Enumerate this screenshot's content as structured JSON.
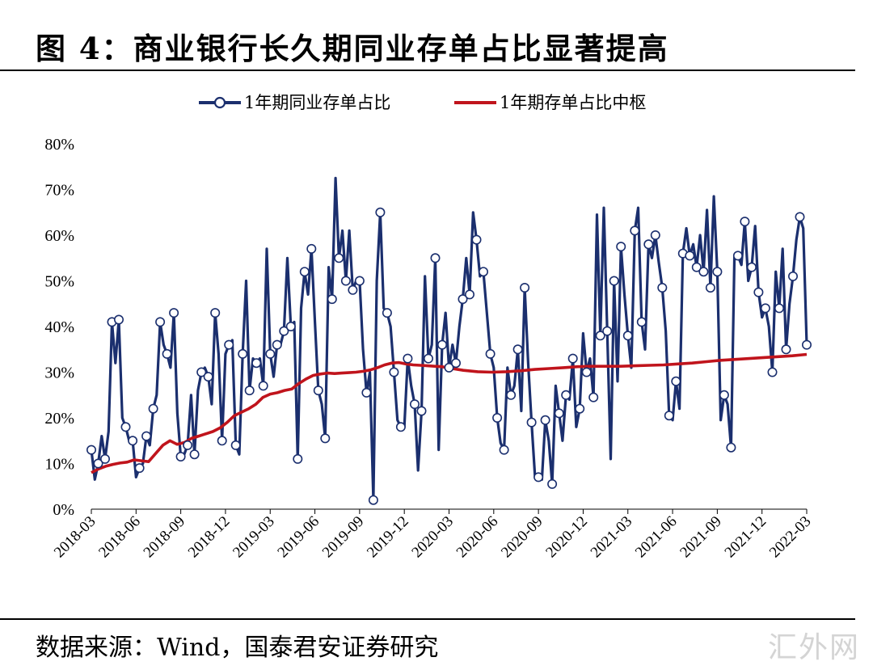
{
  "header": {
    "title": "图 4：商业银行长久期同业存单占比显著提高"
  },
  "footer": {
    "source": "数据来源：Wind，国泰君安证券研究",
    "watermark": "汇外网"
  },
  "colors": {
    "series1": "#1b2f6e",
    "series2": "#c0141c",
    "marker_fill": "#ffffff"
  },
  "chart_data": {
    "type": "line",
    "title": "图 4：商业银行长久期同业存单占比显著提高",
    "xlabel": "",
    "ylabel": "",
    "ylim": [
      0,
      80
    ],
    "yticks": [
      0,
      10,
      20,
      30,
      40,
      50,
      60,
      70,
      80
    ],
    "ytick_labels": [
      "0%",
      "10%",
      "20%",
      "30%",
      "40%",
      "50%",
      "60%",
      "70%",
      "80%"
    ],
    "xticks": [
      "2018-03",
      "2018-06",
      "2018-09",
      "2018-12",
      "2019-03",
      "2019-06",
      "2019-09",
      "2019-12",
      "2020-03",
      "2020-06",
      "2020-09",
      "2020-12",
      "2021-03",
      "2021-06",
      "2021-09",
      "2021-12",
      "2022-03"
    ],
    "x_start": "2018-03",
    "x_end": "2022-03",
    "grid": false,
    "legend_position": "top-center",
    "series": [
      {
        "name": "1年期同业存单占比",
        "marker": "circle",
        "values": [
          13,
          6.5,
          10,
          16,
          11,
          17,
          41,
          32,
          41.5,
          20,
          18,
          15,
          15,
          7,
          9,
          10,
          16,
          14,
          22,
          25,
          41,
          36,
          34,
          31,
          43,
          21,
          11.5,
          12,
          14,
          25,
          12,
          26,
          30,
          31,
          29,
          23,
          43,
          34,
          15,
          34,
          36,
          37,
          14,
          12,
          34,
          50,
          26,
          33,
          32,
          33,
          27,
          57,
          34,
          29,
          36,
          36,
          39,
          55,
          40,
          41,
          11,
          44,
          52,
          47,
          57,
          41,
          26,
          23,
          15.5,
          53,
          46,
          72.5,
          55,
          61,
          50,
          61,
          48,
          50,
          50,
          35,
          25.5,
          30,
          2,
          50,
          65,
          44,
          43,
          40,
          30,
          19.5,
          18,
          18,
          33,
          27,
          23,
          8.5,
          21.5,
          51,
          33,
          36,
          55,
          13,
          36,
          43,
          31,
          36,
          32,
          40,
          46,
          55,
          47,
          65,
          59,
          51,
          52,
          43,
          34,
          31,
          20,
          14.5,
          13,
          31,
          25,
          27,
          35,
          21.5,
          48.5,
          32,
          19,
          7,
          7,
          6.5,
          19.5,
          15,
          5.5,
          27,
          21,
          15,
          25,
          24,
          33,
          18,
          22,
          38.5,
          30,
          33,
          24.5,
          64.5,
          38,
          66,
          39,
          11,
          50,
          28,
          57.5,
          47,
          38,
          31,
          61,
          66,
          41,
          35,
          58,
          55,
          60,
          54,
          48.5,
          39,
          20.5,
          19.5,
          28,
          22,
          56,
          61.5,
          55.5,
          58,
          53,
          60,
          52,
          65.5,
          48.5,
          68.5,
          52,
          19.5,
          25,
          23,
          13.5,
          55.5,
          55.5,
          53.5,
          63,
          50,
          53,
          62,
          47.5,
          42,
          44,
          40,
          30,
          52,
          44,
          57,
          35,
          45,
          51,
          59,
          64,
          61.5,
          36
        ]
      },
      {
        "name": "1年期存单占比中枢",
        "marker": "none",
        "x_frac": [
          0,
          0.01,
          0.02,
          0.03,
          0.04,
          0.05,
          0.06,
          0.07,
          0.08,
          0.09,
          0.1,
          0.11,
          0.12,
          0.13,
          0.14,
          0.15,
          0.17,
          0.18,
          0.19,
          0.2,
          0.22,
          0.23,
          0.24,
          0.25,
          0.26,
          0.27,
          0.28,
          0.29,
          0.3,
          0.31,
          0.32,
          0.33,
          0.34,
          0.35,
          0.36,
          0.37,
          0.38,
          0.39,
          0.4,
          0.41,
          0.42,
          0.43,
          0.44,
          0.45,
          0.46,
          0.47,
          0.48,
          0.49,
          0.5,
          0.52,
          0.54,
          0.56,
          0.58,
          0.6,
          0.62,
          0.64,
          0.66,
          0.68,
          0.7,
          0.72,
          0.74,
          0.76,
          0.78,
          0.8,
          0.82,
          0.84,
          0.86,
          0.88,
          0.9,
          0.92,
          0.94,
          0.96,
          0.98,
          1.0
        ],
        "values": [
          8,
          8.8,
          9.4,
          9.8,
          10.1,
          10.3,
          10.8,
          10.6,
          10.4,
          12.2,
          14,
          15,
          14.2,
          14.6,
          15.5,
          16,
          17,
          17.8,
          19,
          20.5,
          22,
          23,
          24.5,
          25.2,
          25.5,
          26,
          26.3,
          27.5,
          28.5,
          29.3,
          29.6,
          29.8,
          29.7,
          29.8,
          29.9,
          30,
          30.2,
          30.5,
          31,
          31.6,
          32,
          32.1,
          31.8,
          31.6,
          31.5,
          31.4,
          31.3,
          31.2,
          30.9,
          30.4,
          30.1,
          30,
          30.1,
          30.3,
          30.6,
          30.8,
          31,
          31.2,
          31.3,
          31.3,
          31.3,
          31.4,
          31.5,
          31.6,
          31.8,
          32,
          32.3,
          32.6,
          32.8,
          33,
          33.2,
          33.4,
          33.6,
          33.9
        ]
      }
    ]
  }
}
